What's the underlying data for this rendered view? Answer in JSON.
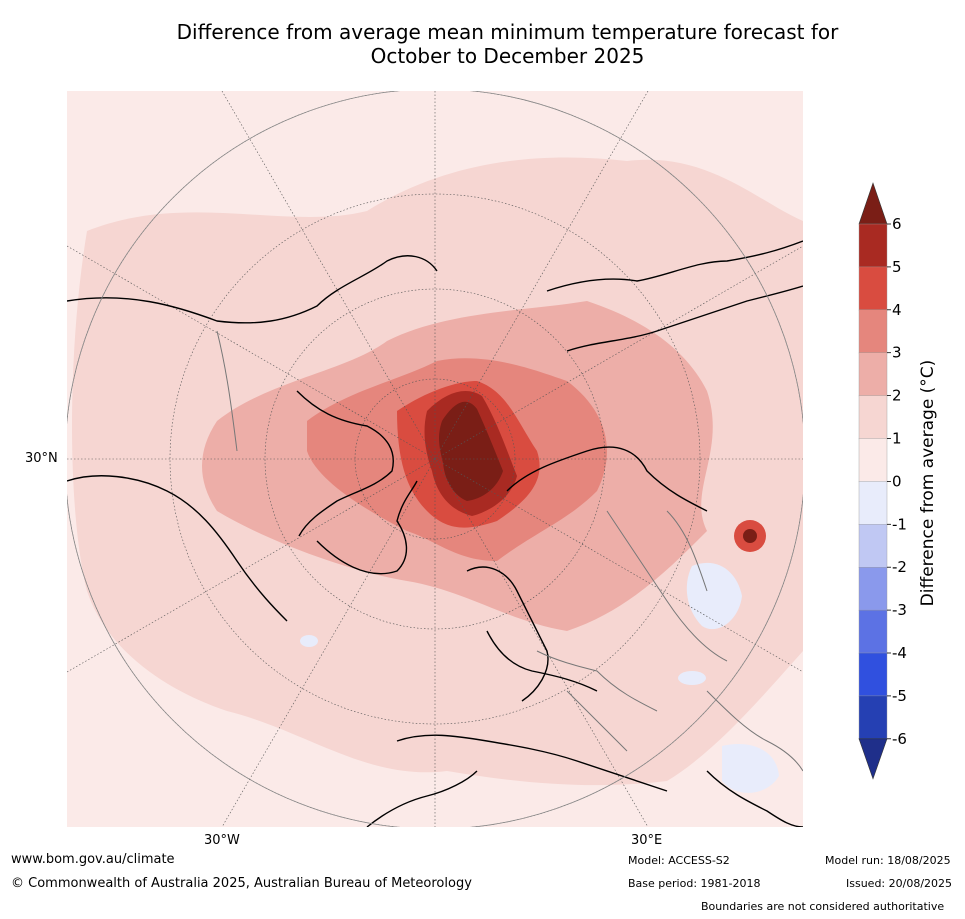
{
  "title_line1": "Difference from average mean minimum temperature forecast for",
  "title_line2": "October to December 2025",
  "map": {
    "lat_label": "30°N",
    "lon_labels": [
      "30°W",
      "30°E"
    ]
  },
  "legend": {
    "title": "Difference from average (°C)",
    "ticks": [
      "6",
      "5",
      "4",
      "3",
      "2",
      "1",
      "0",
      "-1",
      "-2",
      "-3",
      "-4",
      "-5",
      "-6"
    ],
    "colors": [
      "#7a1e16",
      "#a92a22",
      "#d94c40",
      "#e5867d",
      "#edaea8",
      "#f6d6d2",
      "#fbeae8",
      "#e8ecfb",
      "#c0c8f3",
      "#8a99ec",
      "#5c72e4",
      "#3050df",
      "#2540b3",
      "#1f2f8a"
    ]
  },
  "footer": {
    "website": "www.bom.gov.au/climate",
    "copyright": "© Commonwealth of Australia 2025, Australian Bureau of Meteorology",
    "model": "Model: ACCESS-S2",
    "base_period": "Base period: 1981-2018",
    "model_run": "Model run: 18/08/2025",
    "issued": "Issued: 20/08/2025",
    "disclaimer": "Boundaries are not considered authoritative"
  }
}
